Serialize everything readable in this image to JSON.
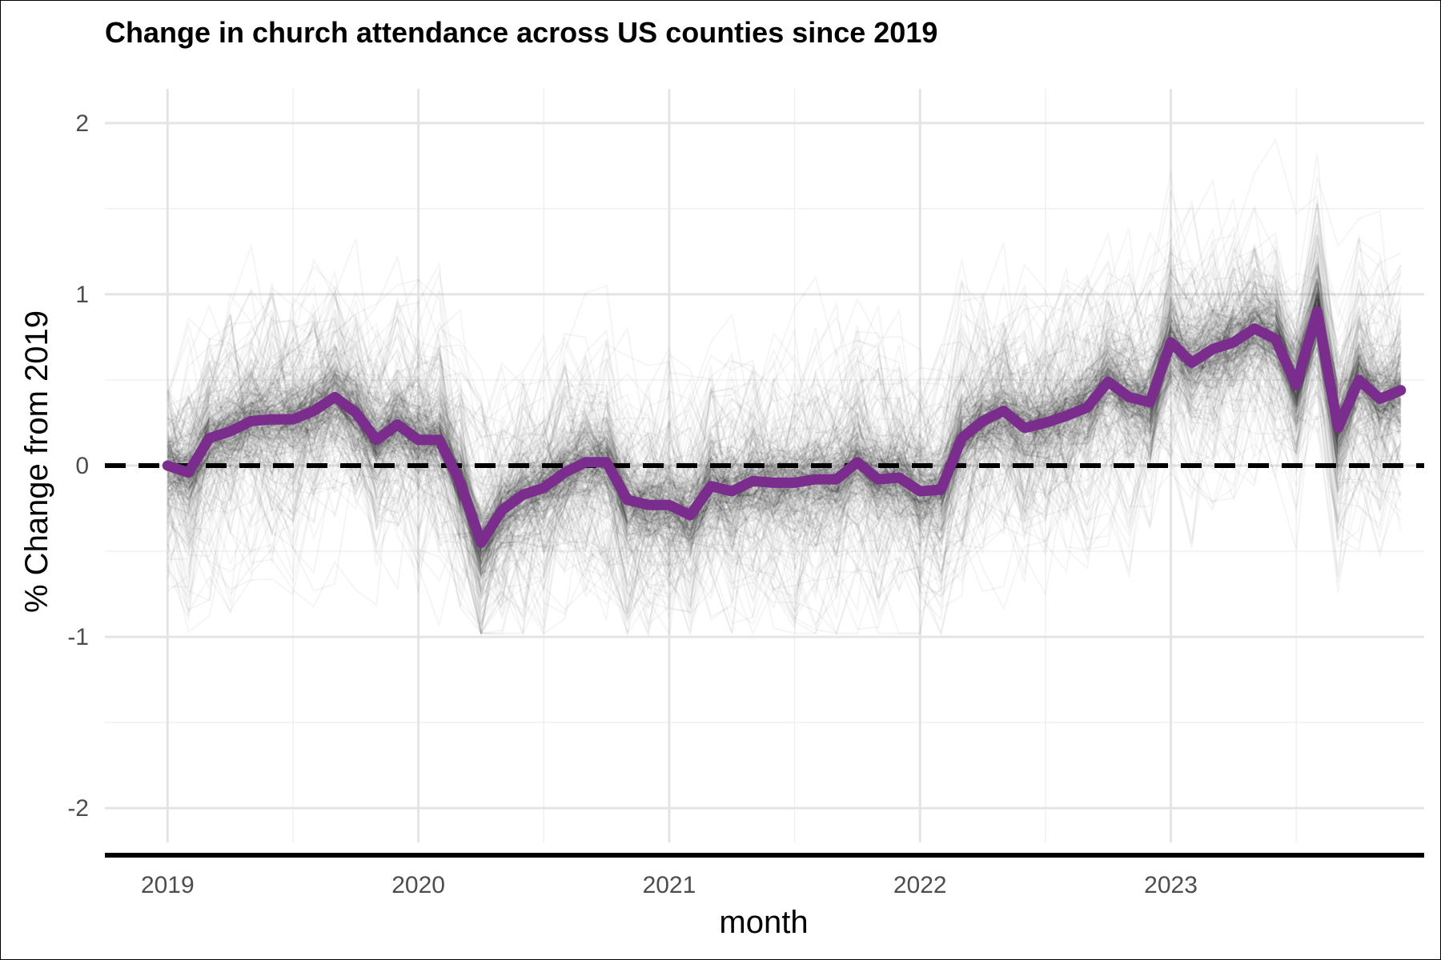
{
  "chart_data": {
    "type": "line",
    "title": "Change in church attendance across US counties since 2019",
    "xlabel": "month",
    "ylabel": "% Change from 2019",
    "ylim": [
      -2.2,
      2.2
    ],
    "y_ticks": [
      "2",
      "1",
      "0",
      "-1",
      "-2"
    ],
    "x_ticks": [
      "2019",
      "2020",
      "2021",
      "2022",
      "2023"
    ],
    "grid": true,
    "reference_line": {
      "y": 0,
      "style": "dashed",
      "color": "#000000"
    },
    "highlight_color": "#7b2d8e",
    "background_lines_color": "#1a1a1a",
    "series": [
      {
        "x": [
          "2019-01",
          "2019-02",
          "2019-03",
          "2019-04",
          "2019-05",
          "2019-06",
          "2019-07",
          "2019-08",
          "2019-09",
          "2019-10",
          "2019-11",
          "2019-12",
          "2020-01",
          "2020-02",
          "2020-03",
          "2020-04",
          "2020-05",
          "2020-06",
          "2020-07",
          "2020-08",
          "2020-09",
          "2020-10",
          "2020-11",
          "2020-12",
          "2021-01",
          "2021-02",
          "2021-03",
          "2021-04",
          "2021-05",
          "2021-06",
          "2021-07",
          "2021-08",
          "2021-09",
          "2021-10",
          "2021-11",
          "2021-12",
          "2022-01",
          "2022-02",
          "2022-03",
          "2022-04",
          "2022-05",
          "2022-06",
          "2022-07",
          "2022-08",
          "2022-09",
          "2022-10",
          "2022-11",
          "2022-12",
          "2023-01",
          "2023-02",
          "2023-03",
          "2023-04",
          "2023-05",
          "2023-06",
          "2023-07",
          "2023-08",
          "2023-09",
          "2023-10",
          "2023-11",
          "2023-12"
        ],
        "values": [
          0.0,
          -0.04,
          0.16,
          0.2,
          0.26,
          0.27,
          0.27,
          0.32,
          0.4,
          0.31,
          0.15,
          0.24,
          0.15,
          0.15,
          -0.1,
          -0.45,
          -0.26,
          -0.17,
          -0.13,
          -0.04,
          0.02,
          0.02,
          -0.2,
          -0.23,
          -0.23,
          -0.29,
          -0.12,
          -0.15,
          -0.09,
          -0.1,
          -0.1,
          -0.08,
          -0.08,
          0.02,
          -0.08,
          -0.07,
          -0.15,
          -0.14,
          0.16,
          0.26,
          0.32,
          0.22,
          0.25,
          0.29,
          0.34,
          0.49,
          0.4,
          0.37,
          0.72,
          0.6,
          0.68,
          0.72,
          0.8,
          0.74,
          0.47,
          0.9,
          0.22,
          0.5,
          0.39,
          0.44
        ]
      }
    ]
  }
}
